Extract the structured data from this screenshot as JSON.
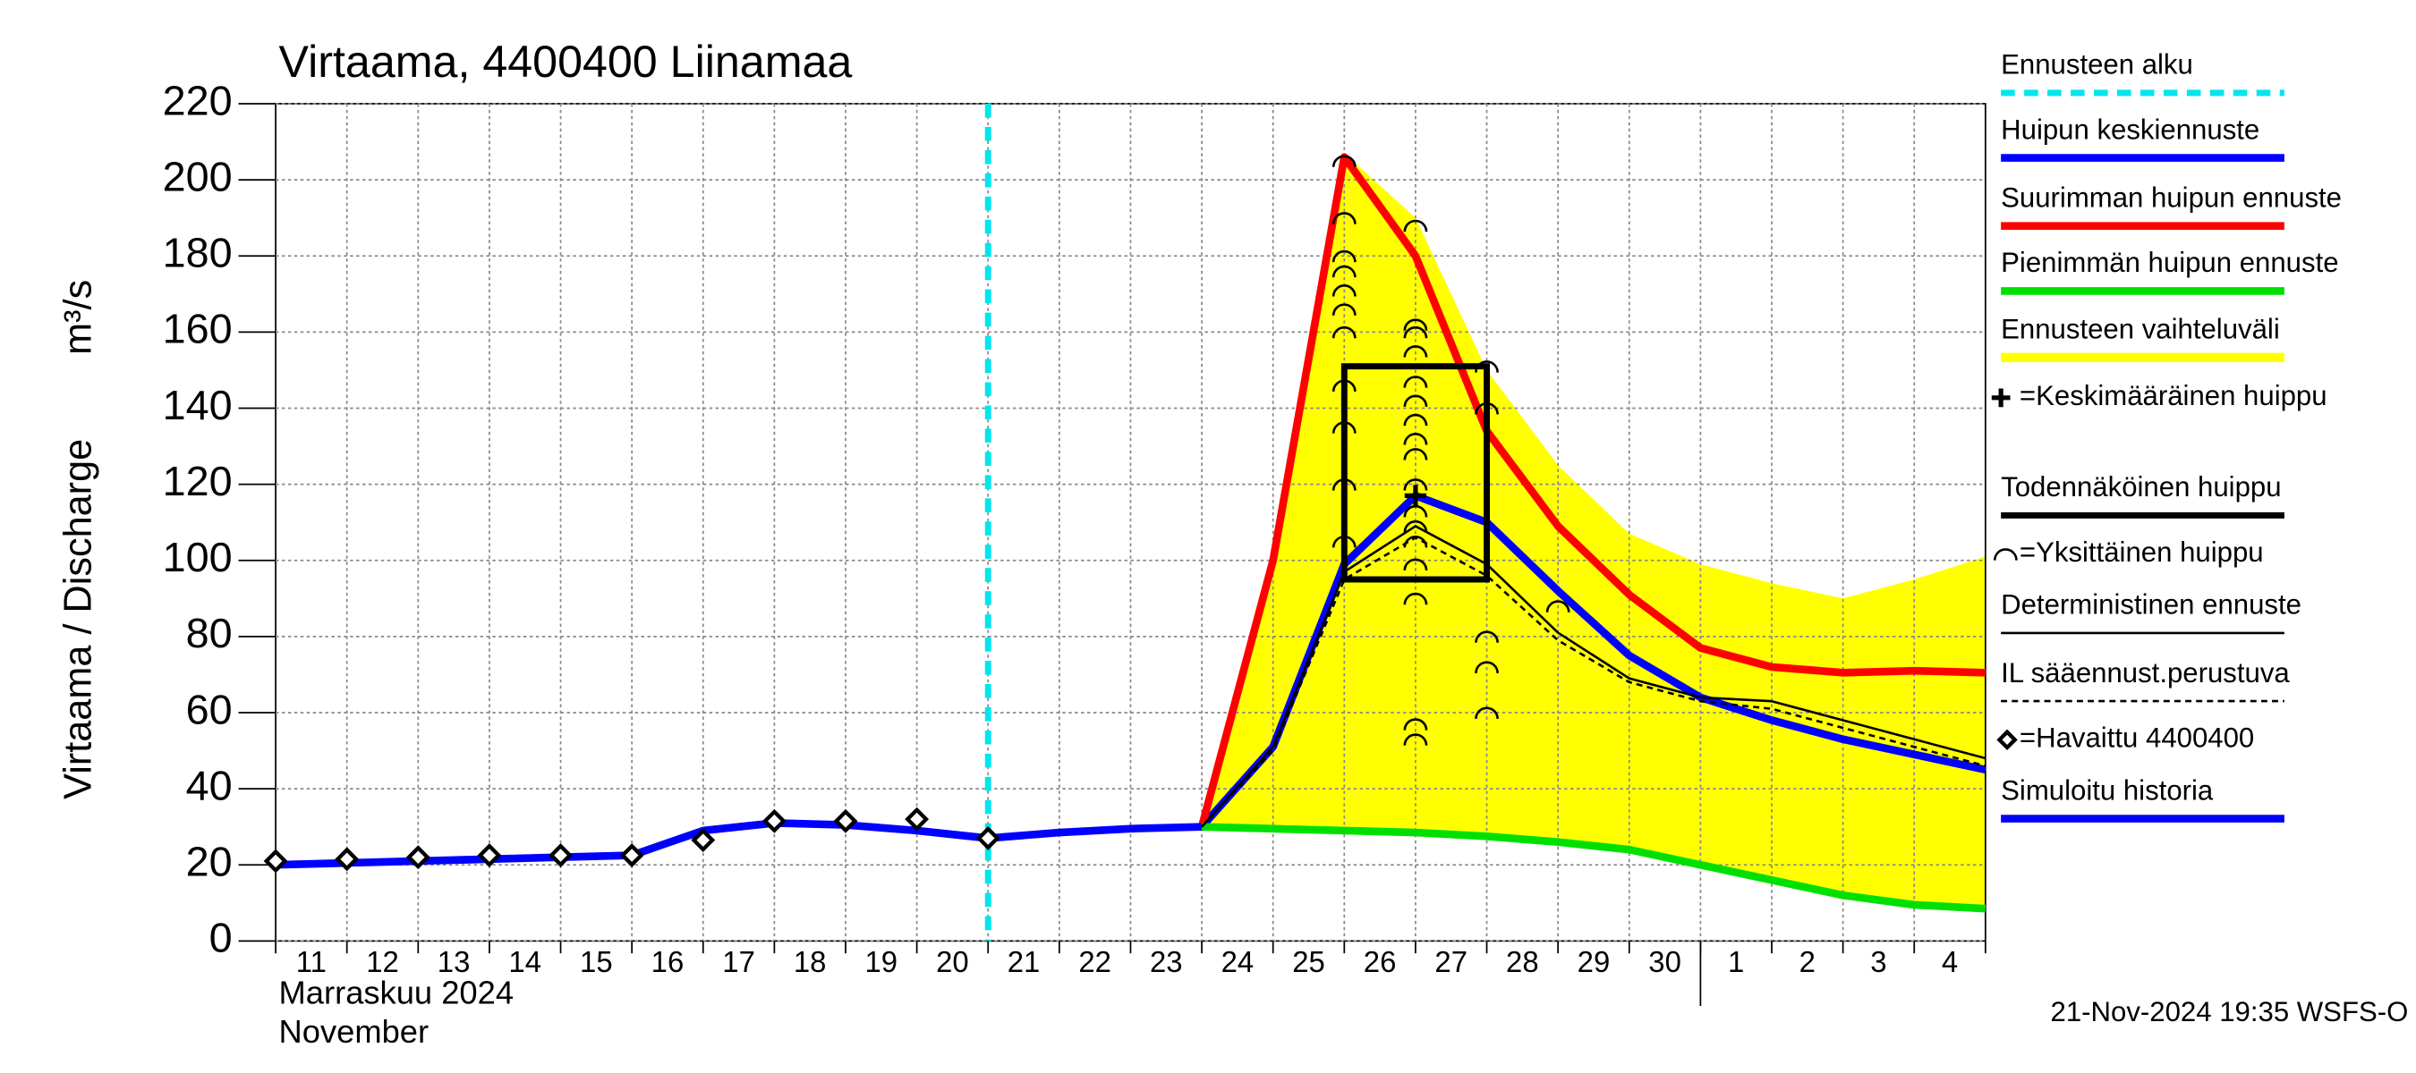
{
  "chart_data": {
    "type": "line",
    "title": "Virtaama, 4400400 Liinamaa",
    "y_label": "Virtaama / Discharge",
    "y_unit": "m³/s",
    "month_fi": "Marraskuu 2024",
    "month_en": "November",
    "timestamp": "21-Nov-2024 19:35 WSFS-O",
    "categories": [
      "11",
      "12",
      "13",
      "14",
      "15",
      "16",
      "17",
      "18",
      "19",
      "20",
      "21",
      "22",
      "23",
      "24",
      "25",
      "26",
      "27",
      "28",
      "29",
      "30",
      "1",
      "2",
      "3",
      "4",
      null
    ],
    "ylim": [
      0,
      220
    ],
    "yticks": [
      0,
      20,
      40,
      60,
      80,
      100,
      120,
      140,
      160,
      180,
      200,
      220
    ],
    "grid": true,
    "series": [
      {
        "name": "Ennusteen alku",
        "kind": "vline",
        "color": "#00e5ee",
        "x": 10
      },
      {
        "name": "Huipun keskiennuste",
        "kind": "line",
        "color": "#0000ff",
        "width": 5,
        "values": [
          null,
          null,
          null,
          null,
          null,
          null,
          null,
          null,
          null,
          null,
          null,
          null,
          null,
          30,
          51,
          99,
          117,
          110,
          92,
          75,
          64,
          58,
          53,
          49,
          45
        ]
      },
      {
        "name": "Suurimman huipun ennuste",
        "kind": "line",
        "color": "#ff0000",
        "width": 5,
        "values": [
          null,
          null,
          null,
          null,
          null,
          null,
          null,
          null,
          null,
          null,
          null,
          null,
          null,
          30,
          100,
          206,
          180,
          134,
          109,
          91,
          77,
          72,
          70.5,
          71,
          70.5
        ]
      },
      {
        "name": "Pienimmän huipun ennuste",
        "kind": "line",
        "color": "#00e000",
        "width": 5,
        "values": [
          null,
          null,
          null,
          null,
          null,
          null,
          null,
          null,
          null,
          null,
          null,
          null,
          null,
          30,
          29.5,
          29,
          28.5,
          27.5,
          26,
          24,
          20,
          16,
          12,
          9.5,
          8.5
        ]
      },
      {
        "name": "Ennusteen vaihteluväli",
        "kind": "band",
        "color": "#ffff00",
        "lower": [
          null,
          null,
          null,
          null,
          null,
          null,
          null,
          null,
          null,
          null,
          null,
          null,
          null,
          30,
          29.5,
          29,
          28.5,
          27.5,
          26,
          24,
          20,
          16,
          12,
          9.5,
          8.5
        ],
        "upper": [
          null,
          null,
          null,
          null,
          null,
          null,
          null,
          null,
          null,
          null,
          null,
          null,
          null,
          30,
          100,
          207,
          190,
          150,
          125,
          107,
          99,
          94,
          90,
          95,
          101
        ]
      },
      {
        "name": "=Keskimääräinen huippu",
        "kind": "cross",
        "color": "#000000",
        "x": 16,
        "y": 117
      },
      {
        "name": "Todennäköinen huippu",
        "kind": "box",
        "color": "#000000",
        "x": [
          15,
          17
        ],
        "y": [
          95,
          151
        ]
      },
      {
        "name": "=Yksittäinen huippu",
        "kind": "arcs",
        "color": "#000000",
        "x": [
          15,
          15,
          15,
          15,
          15,
          15,
          15,
          15,
          15,
          15,
          15,
          16,
          16,
          16,
          16,
          16,
          16,
          16,
          16,
          16,
          16,
          16,
          16,
          16,
          16,
          16,
          16,
          16,
          17,
          17,
          17,
          17,
          17,
          18
        ],
        "y": [
          205,
          190,
          180,
          176,
          171,
          166,
          160,
          146,
          135,
          120,
          105,
          188,
          162,
          160,
          155,
          147,
          142,
          137,
          132,
          128,
          120,
          113,
          109,
          105,
          99,
          90,
          57,
          53,
          151,
          140,
          80,
          72,
          60,
          88
        ]
      },
      {
        "name": "Deterministinen ennuste",
        "kind": "line",
        "color": "#000000",
        "width": 1.5,
        "values": [
          null,
          null,
          null,
          null,
          null,
          null,
          null,
          null,
          null,
          null,
          null,
          null,
          null,
          30,
          51,
          97,
          109,
          99,
          81,
          69,
          64,
          63,
          58,
          53,
          48
        ]
      },
      {
        "name": "IL sääennust.perustuva",
        "kind": "line",
        "color": "#000000",
        "width": 1.5,
        "dash": true,
        "values": [
          null,
          null,
          null,
          null,
          null,
          null,
          null,
          null,
          null,
          null,
          null,
          null,
          null,
          30,
          50,
          95,
          106,
          96,
          79,
          68,
          63,
          61,
          56,
          51,
          46
        ]
      },
      {
        "name": "=Havaittu 4400400",
        "kind": "points",
        "color": "#000000",
        "values": [
          21,
          21.5,
          22,
          22.5,
          22.5,
          22.5,
          26.5,
          31.5,
          31.5,
          32,
          27,
          null,
          null,
          null,
          null,
          null,
          null,
          null,
          null,
          null,
          null,
          null,
          null,
          null,
          null
        ]
      },
      {
        "name": "Simuloitu historia",
        "kind": "line",
        "color": "#0000ff",
        "width": 5,
        "values": [
          20,
          20.5,
          21,
          21.5,
          22,
          22.5,
          29,
          31,
          30.5,
          29,
          27,
          28.5,
          29.5,
          30,
          null,
          null,
          null,
          null,
          null,
          null,
          null,
          null,
          null,
          null,
          null
        ]
      }
    ]
  }
}
